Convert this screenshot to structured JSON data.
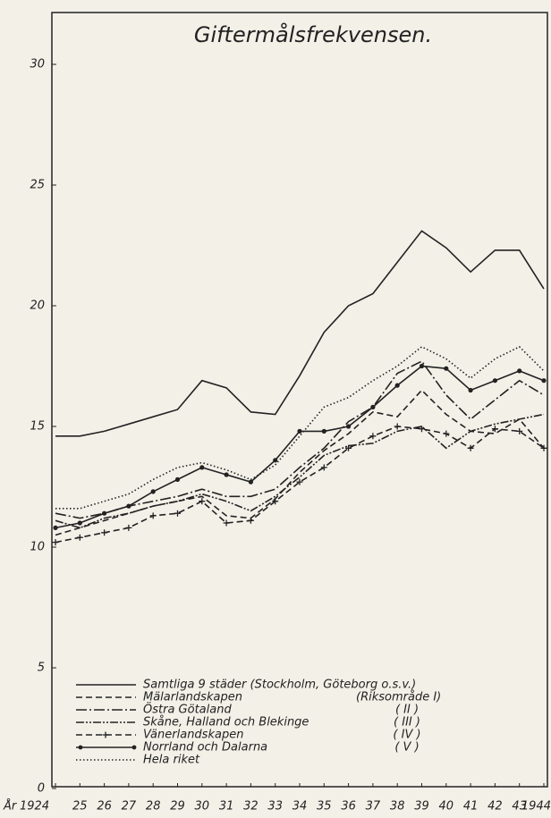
{
  "chart_data": {
    "type": "line",
    "title": "Giftermålsfrekvensen.",
    "xlabel": "År",
    "x": [
      1924,
      1925,
      1926,
      1927,
      1928,
      1929,
      1930,
      1931,
      1932,
      1933,
      1934,
      1935,
      1936,
      1937,
      1938,
      1939,
      1940,
      1941,
      1942,
      1943,
      1944
    ],
    "xlim": [
      1924,
      1944
    ],
    "xticks": [
      {
        "value": 1924,
        "label": "1924"
      },
      {
        "value": 1925,
        "label": "25"
      },
      {
        "value": 1926,
        "label": "26"
      },
      {
        "value": 1927,
        "label": "27"
      },
      {
        "value": 1928,
        "label": "28"
      },
      {
        "value": 1929,
        "label": "29"
      },
      {
        "value": 1930,
        "label": "30"
      },
      {
        "value": 1931,
        "label": "31"
      },
      {
        "value": 1932,
        "label": "32"
      },
      {
        "value": 1933,
        "label": "33"
      },
      {
        "value": 1934,
        "label": "34"
      },
      {
        "value": 1935,
        "label": "35"
      },
      {
        "value": 1936,
        "label": "36"
      },
      {
        "value": 1937,
        "label": "37"
      },
      {
        "value": 1938,
        "label": "38"
      },
      {
        "value": 1939,
        "label": "39"
      },
      {
        "value": 1940,
        "label": "40"
      },
      {
        "value": 1941,
        "label": "41"
      },
      {
        "value": 1942,
        "label": "42"
      },
      {
        "value": 1943,
        "label": "43"
      },
      {
        "value": 1944,
        "label": "1944"
      }
    ],
    "ylim": [
      0,
      30
    ],
    "yticks": [
      0,
      5,
      10,
      15,
      20,
      25,
      30
    ],
    "series": [
      {
        "name": "Samtliga 9 städer (Stockholm, Göteborg o.s.v.)",
        "color": "#222222",
        "dash": "solid",
        "marker": "none",
        "values": [
          14.6,
          14.6,
          14.8,
          15.1,
          15.4,
          15.7,
          16.9,
          16.6,
          15.6,
          15.5,
          17.1,
          18.9,
          20.0,
          20.5,
          21.8,
          23.1,
          22.4,
          21.4,
          22.3,
          22.3,
          20.7
        ]
      },
      {
        "name": "Mälarlandskapen",
        "color": "#222222",
        "dash": "dashed",
        "marker": "none",
        "values": [
          10.5,
          10.8,
          11.1,
          11.4,
          11.7,
          11.9,
          12.1,
          11.3,
          11.2,
          12.0,
          13.1,
          14.0,
          14.7,
          15.6,
          15.4,
          16.5,
          15.5,
          14.8,
          14.7,
          15.3,
          14.1
        ]
      },
      {
        "name": "Östra Götaland",
        "color": "#222222",
        "dash": "dashdot",
        "marker": "none",
        "values": [
          11.4,
          11.2,
          11.4,
          11.7,
          11.9,
          12.1,
          12.4,
          12.1,
          12.1,
          12.4,
          13.3,
          14.1,
          15.2,
          15.8,
          17.2,
          17.7,
          16.3,
          15.3,
          16.1,
          16.9,
          16.3
        ]
      },
      {
        "name": "Skåne, Halland och Blekinge",
        "color": "#222222",
        "dash": "dashdotdot",
        "marker": "none",
        "values": [
          11.1,
          10.8,
          11.2,
          11.4,
          11.7,
          11.9,
          12.2,
          11.9,
          11.5,
          12.1,
          12.9,
          13.8,
          14.2,
          14.3,
          14.8,
          15.0,
          14.1,
          14.8,
          15.1,
          15.3,
          15.5
        ]
      },
      {
        "name": "Vänerlandskapen",
        "color": "#222222",
        "dash": "dashed",
        "marker": "plus",
        "values": [
          10.2,
          10.4,
          10.6,
          10.8,
          11.3,
          11.4,
          11.9,
          11.0,
          11.1,
          11.9,
          12.7,
          13.3,
          14.1,
          14.6,
          15.0,
          14.9,
          14.7,
          14.1,
          14.9,
          14.8,
          14.1
        ]
      },
      {
        "name": "Norrland och Dalarna",
        "color": "#222222",
        "dash": "solid",
        "marker": "dot",
        "values": [
          10.8,
          11.0,
          11.4,
          11.7,
          12.3,
          12.8,
          13.3,
          13.0,
          12.7,
          13.6,
          14.8,
          14.8,
          15.0,
          15.8,
          16.7,
          17.5,
          17.4,
          16.5,
          16.9,
          17.3,
          16.9
        ]
      },
      {
        "name": "Hela riket",
        "color": "#222222",
        "dash": "dotted",
        "marker": "none",
        "values": [
          11.6,
          11.6,
          11.9,
          12.2,
          12.8,
          13.3,
          13.5,
          13.2,
          12.8,
          13.4,
          14.6,
          15.8,
          16.2,
          16.9,
          17.5,
          18.3,
          17.8,
          17.0,
          17.8,
          18.3,
          17.3
        ]
      }
    ],
    "annotations": [
      "(Riksområde I)",
      "( II )",
      "( III )",
      "( IV )",
      "( V )"
    ]
  }
}
